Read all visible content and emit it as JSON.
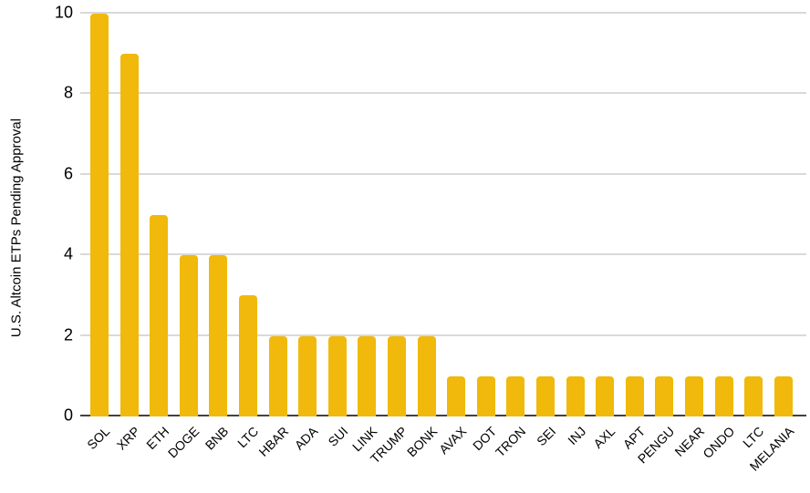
{
  "chart_data": {
    "type": "bar",
    "title": "",
    "xlabel": "",
    "ylabel": "U.S. Altcoin ETPs Pending Approval",
    "categories": [
      "SOL",
      "XRP",
      "ETH",
      "DOGE",
      "BNB",
      "LTC",
      "HBAR",
      "ADA",
      "SUI",
      "LINK",
      "TRUMP",
      "BONK",
      "AVAX",
      "DOT",
      "TRON",
      "SEI",
      "INJ",
      "AXL",
      "APT",
      "PENGU",
      "NEAR",
      "ONDO",
      "LTC",
      "MELANIA"
    ],
    "values": [
      10,
      9,
      5,
      4,
      4,
      3,
      2,
      2,
      2,
      2,
      2,
      2,
      1,
      1,
      1,
      1,
      1,
      1,
      1,
      1,
      1,
      1,
      1,
      1
    ],
    "ylim": [
      0,
      10
    ],
    "yticks": [
      0,
      2,
      4,
      6,
      8,
      10
    ],
    "grid": true,
    "legend": false,
    "colors": {
      "bar": "#F0B90B",
      "gridline": "#D9D9D9",
      "axis": "#424242",
      "text": "#000000",
      "background": "#FFFFFF"
    }
  }
}
